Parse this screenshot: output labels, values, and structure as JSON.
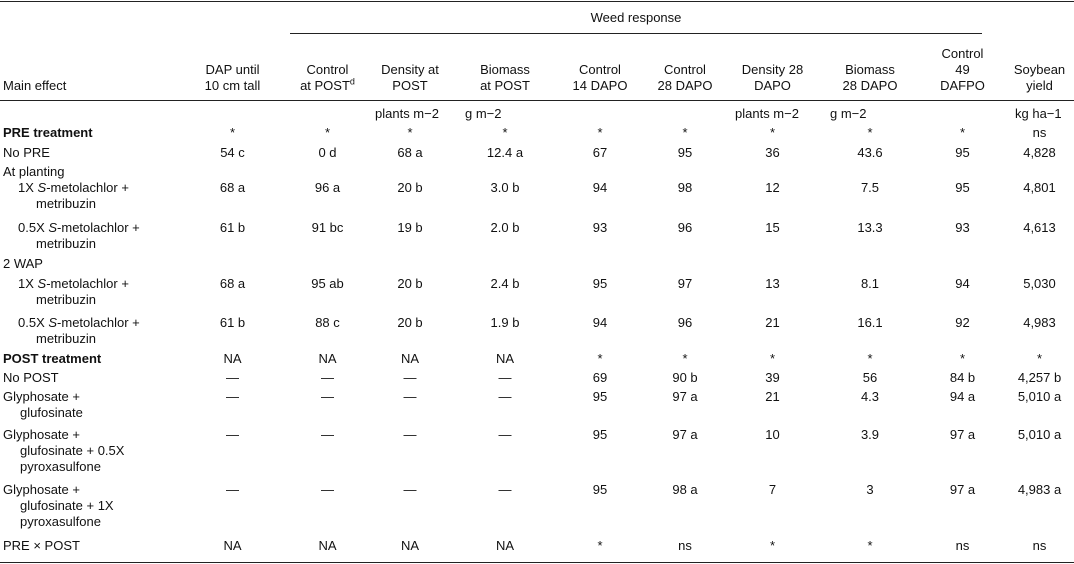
{
  "header": {
    "group": "Weed response",
    "main_effect": "Main effect",
    "columns": [
      [
        "DAP until",
        "10 cm tall"
      ],
      [
        "Control",
        "at POST"
      ],
      [
        "Density at",
        "POST"
      ],
      [
        "Biomass",
        "at POST"
      ],
      [
        "Control",
        "14 DAPO"
      ],
      [
        "Control",
        "28 DAPO"
      ],
      [
        "Density 28",
        "DAPO"
      ],
      [
        "Biomass",
        "28 DAPO"
      ],
      [
        "Control",
        "49",
        "DAFPO"
      ],
      [
        "Soybean",
        "yield"
      ]
    ],
    "control_at_post_superscript": "d"
  },
  "units": [
    "",
    "",
    "plants m−2",
    "g m−2",
    "",
    "",
    "plants m−2",
    "g m−2",
    "",
    "kg ha−1"
  ],
  "rows": [
    {
      "label": [
        "PRE treatment"
      ],
      "bold": true,
      "cells": [
        "*",
        "*",
        "*",
        "*",
        "*",
        "*",
        "*",
        "*",
        "*",
        "ns"
      ]
    },
    {
      "label": [
        "No PRE"
      ],
      "cells": [
        "54 c",
        "0 d",
        "68 a",
        "12.4 a",
        "67",
        "95",
        "36",
        "43.6",
        "95",
        "4,828"
      ]
    },
    {
      "label": [
        "At planting"
      ],
      "cells": [
        "",
        "",
        "",
        "",
        "",
        "",
        "",
        "",
        "",
        ""
      ]
    },
    {
      "label": [
        "1X S-metolachlor +",
        "metribuzin"
      ],
      "indent": true,
      "cells": [
        "68 a",
        "96 a",
        "20 b",
        "3.0 b",
        "94",
        "98",
        "12",
        "7.5",
        "95",
        "4,801"
      ]
    },
    {
      "label": [
        "0.5X S-metolachlor +",
        "metribuzin"
      ],
      "indent": true,
      "cells": [
        "61 b",
        "91 bc",
        "19 b",
        "2.0 b",
        "93",
        "96",
        "15",
        "13.3",
        "93",
        "4,613"
      ]
    },
    {
      "label": [
        "2 WAP"
      ],
      "cells": [
        "",
        "",
        "",
        "",
        "",
        "",
        "",
        "",
        "",
        ""
      ]
    },
    {
      "label": [
        "1X S-metolachlor +",
        "metribuzin"
      ],
      "indent": true,
      "cells": [
        "68 a",
        "95 ab",
        "20 b",
        "2.4 b",
        "95",
        "97",
        "13",
        "8.1",
        "94",
        "5,030"
      ]
    },
    {
      "label": [
        "0.5X S-metolachlor +",
        "metribuzin"
      ],
      "indent": true,
      "cells": [
        "61 b",
        "88 c",
        "20 b",
        "1.9 b",
        "94",
        "96",
        "21",
        "16.1",
        "92",
        "4,983"
      ]
    },
    {
      "label": [
        "POST treatment"
      ],
      "bold": true,
      "cells": [
        "NA",
        "NA",
        "NA",
        "NA",
        "*",
        "*",
        "*",
        "*",
        "*",
        "*"
      ]
    },
    {
      "label": [
        "No POST"
      ],
      "cells": [
        "—",
        "—",
        "—",
        "—",
        "69",
        "90 b",
        "39",
        "56",
        "84 b",
        "4,257 b"
      ]
    },
    {
      "label": [
        "Glyphosate +",
        "glufosinate"
      ],
      "cells": [
        "—",
        "—",
        "—",
        "—",
        "95",
        "97 a",
        "21",
        "4.3",
        "94 a",
        "5,010 a"
      ]
    },
    {
      "label": [
        "Glyphosate +",
        "glufosinate + 0.5X",
        "pyroxasulfone"
      ],
      "cells": [
        "—",
        "—",
        "—",
        "—",
        "95",
        "97 a",
        "10",
        "3.9",
        "97 a",
        "5,010 a"
      ]
    },
    {
      "label": [
        "Glyphosate +",
        "glufosinate + 1X",
        "pyroxasulfone"
      ],
      "cells": [
        "—",
        "—",
        "—",
        "—",
        "95",
        "98 a",
        "7",
        "3",
        "97 a",
        "4,983 a"
      ]
    },
    {
      "label": [
        "PRE × POST"
      ],
      "cells": [
        "NA",
        "NA",
        "NA",
        "NA",
        "*",
        "ns",
        "*",
        "*",
        "ns",
        "ns"
      ]
    }
  ]
}
